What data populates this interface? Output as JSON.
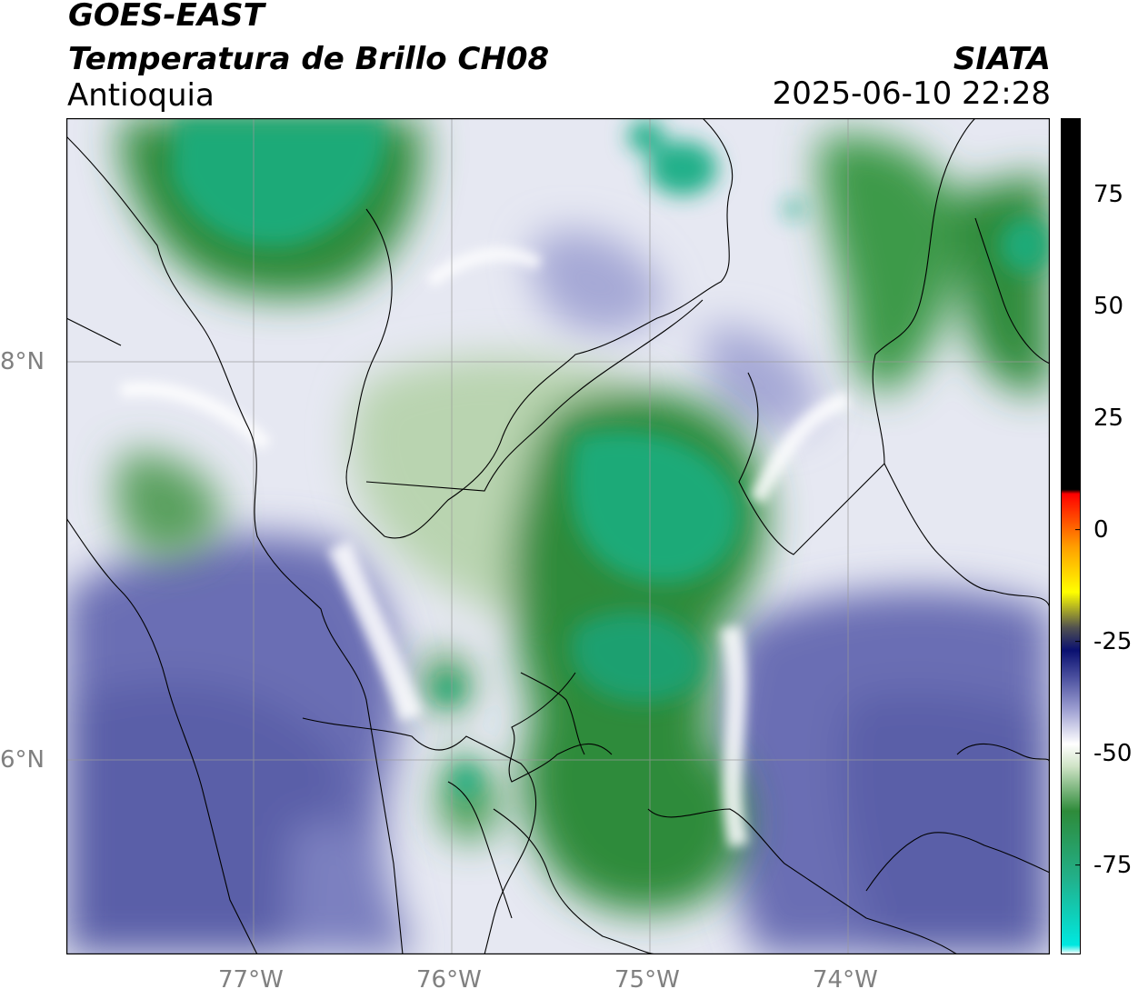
{
  "header": {
    "satellite": "GOES-EAST",
    "product": "Temperatura de Brillo CH08",
    "region": "Antioquia",
    "brand": "SIATA",
    "datetime": "2025-06-10 22:28"
  },
  "map": {
    "lat_labels": [
      "8°N",
      "6°N"
    ],
    "lon_labels": [
      "77°W",
      "76°W",
      "75°W",
      "74°W"
    ],
    "gridlines": true,
    "colors": {
      "cold_cloud": "#2e8b3a",
      "cold_core": "#22b08a",
      "mid": "#e8ecf2",
      "warm_clear": "#5a5fa8",
      "border_line": "#000000",
      "grid_line": "#9a9a9a"
    }
  },
  "colorbar": {
    "tick_labels": [
      "75",
      "50",
      "25",
      "0",
      "-25",
      "-50",
      "-75"
    ],
    "tick_values": [
      75,
      50,
      25,
      0,
      -25,
      -50,
      -75
    ],
    "range": [
      -95,
      92
    ],
    "stops": [
      {
        "value": -95,
        "color": "#ffffff"
      },
      {
        "value": -93,
        "color": "#00e8e0"
      },
      {
        "value": -78,
        "color": "#22b08a"
      },
      {
        "value": -63,
        "color": "#2e8b3a"
      },
      {
        "value": -53,
        "color": "#cfe3c6"
      },
      {
        "value": -48,
        "color": "#ffffff"
      },
      {
        "value": -40,
        "color": "#9a9cd0"
      },
      {
        "value": -33,
        "color": "#4a4f9e"
      },
      {
        "value": -27,
        "color": "#0a1070"
      },
      {
        "value": -22,
        "color": "#505050"
      },
      {
        "value": -14,
        "color": "#ffff00"
      },
      {
        "value": -4,
        "color": "#ffa000"
      },
      {
        "value": 8,
        "color": "#ff0000"
      },
      {
        "value": 9,
        "color": "#000000"
      },
      {
        "value": 92,
        "color": "#000000"
      }
    ]
  }
}
